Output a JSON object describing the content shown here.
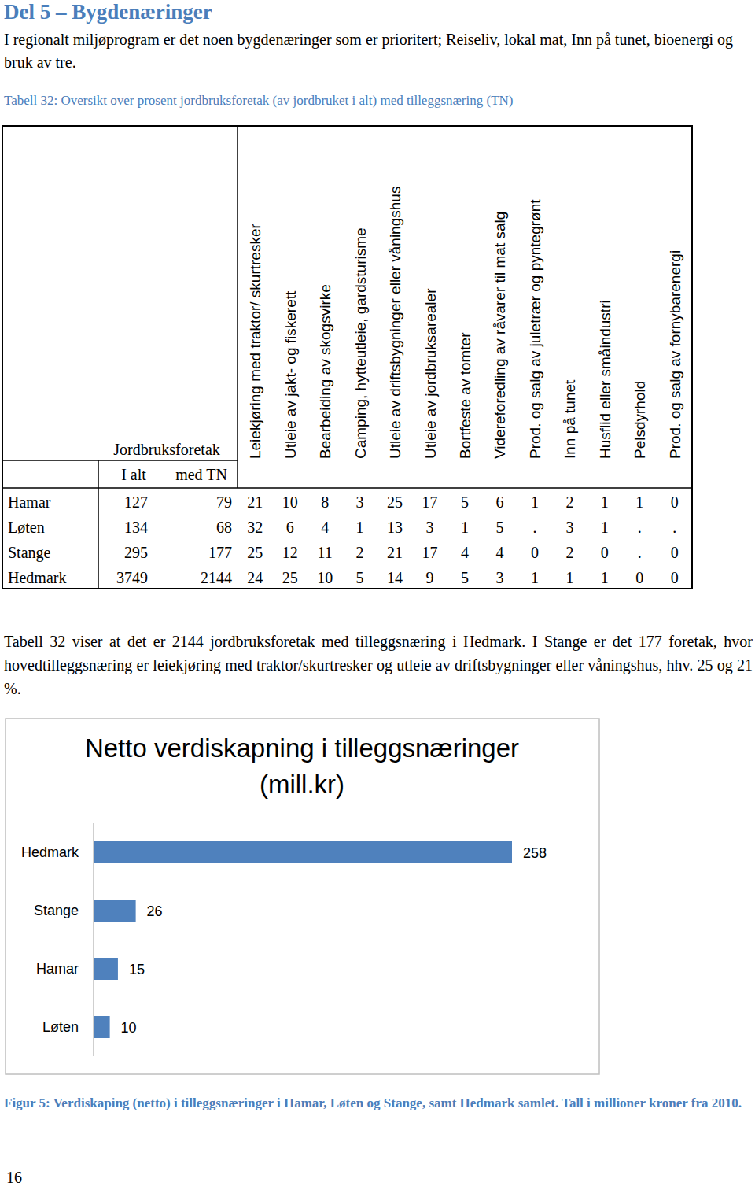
{
  "heading": "Del 5 – Bygdenæringer",
  "intro": "I regionalt miljøprogram er det noen bygdenæringer som er prioritert; Reiseliv, lokal mat, Inn på tunet, bioenergi og bruk av tre.",
  "table": {
    "caption": "Tabell 32: Oversikt over prosent jordbruksforetak (av jordbruket i alt) med tilleggsnæring (TN)",
    "group_header": "Jordbruksforetak",
    "sub_headers": [
      "I alt",
      "med TN"
    ],
    "columns": [
      "Leiekjøring med traktor/ skurtresker",
      "Utleie av jakt- og fiskerett",
      "Bearbeiding av skogsvirke",
      "Camping, hytteutleie, gardsturisme",
      "Utleie av driftsbygninger eller våningshus",
      "Utleie av jordbruksarealer",
      "Bortfeste av tomter",
      "Videreforedling av råvarer til mat salg",
      "Prod. og salg av juletrær og pyntegrønt",
      "Inn på tunet",
      "Husflid eller småindustri",
      "Pelsdyrhold",
      "Prod. og salg av fornybarenergi"
    ],
    "rows": [
      {
        "name": "Hamar",
        "total": 127,
        "with_tn": 79,
        "values": [
          21,
          10,
          8,
          3,
          25,
          17,
          5,
          6,
          1,
          2,
          1,
          1,
          0
        ]
      },
      {
        "name": "Løten",
        "total": 134,
        "with_tn": 68,
        "values": [
          32,
          6,
          4,
          1,
          13,
          3,
          1,
          5,
          ".",
          3,
          1,
          ".",
          "."
        ]
      },
      {
        "name": "Stange",
        "total": 295,
        "with_tn": 177,
        "values": [
          25,
          12,
          11,
          2,
          21,
          17,
          4,
          4,
          0,
          2,
          0,
          ".",
          0
        ]
      },
      {
        "name": "Hedmark",
        "total": 3749,
        "with_tn": 2144,
        "values": [
          24,
          25,
          10,
          5,
          14,
          9,
          5,
          3,
          1,
          1,
          1,
          0,
          0
        ]
      }
    ]
  },
  "paragraph": "Tabell 32 viser at det er 2144 jordbruksforetak med tilleggsnæring i Hedmark. I Stange er det 177 foretak, hvor hovedtilleggsnæring er leiekjøring med traktor/skurtresker og utleie av driftsbygninger eller våningshus, hhv. 25 og 21 %.",
  "chart_data": {
    "type": "bar",
    "title": "Netto verdiskapning i tilleggsnæringer (mill.kr)",
    "orientation": "horizontal",
    "categories": [
      "Hedmark",
      "Stange",
      "Hamar",
      "Løten"
    ],
    "values": [
      258,
      26,
      15,
      10
    ],
    "color": "#4f81bd",
    "xlim": [
      0,
      300
    ],
    "data_labels": true,
    "tick_labels": "y",
    "grid": false
  },
  "figure_caption": "Figur 5: Verdiskaping (netto) i tilleggsnæringer i Hamar, Løten og Stange, samt Hedmark samlet. Tall i millioner kroner fra 2010.",
  "page_number": 16
}
